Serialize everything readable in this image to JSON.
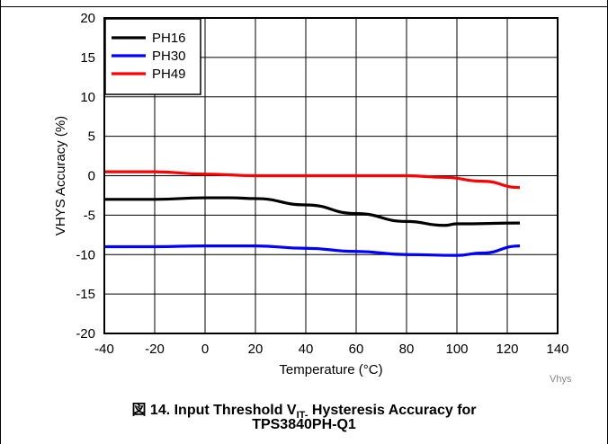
{
  "chart_data": {
    "type": "line",
    "title": "",
    "xlabel": "Temperature (°C)",
    "ylabel": "VHYS Accuracy (%)",
    "xlim": [
      -40,
      140
    ],
    "ylim": [
      -20,
      20
    ],
    "xticks": [
      -40,
      -20,
      0,
      20,
      40,
      60,
      80,
      100,
      120,
      140
    ],
    "yticks": [
      -20,
      -15,
      -10,
      -5,
      0,
      5,
      10,
      15,
      20
    ],
    "grid": true,
    "legend_position": "top-left",
    "series": [
      {
        "name": "PH16",
        "color": "#000000",
        "x": [
          -40,
          -20,
          0,
          10,
          20,
          40,
          60,
          80,
          95,
          100,
          125
        ],
        "y": [
          -3.0,
          -3.0,
          -2.8,
          -2.8,
          -2.9,
          -3.7,
          -4.8,
          -5.8,
          -6.3,
          -6.1,
          -6.0
        ]
      },
      {
        "name": "PH30",
        "color": "#0000ff",
        "x": [
          -40,
          -20,
          0,
          20,
          40,
          60,
          80,
          100,
          110,
          125
        ],
        "y": [
          -9.0,
          -9.0,
          -8.9,
          -8.9,
          -9.2,
          -9.6,
          -10.0,
          -10.1,
          -9.8,
          -8.9
        ]
      },
      {
        "name": "PH49",
        "color": "#ff0000",
        "x": [
          -40,
          -20,
          0,
          20,
          40,
          60,
          80,
          95,
          110,
          125
        ],
        "y": [
          0.5,
          0.5,
          0.2,
          0.0,
          0.0,
          0.0,
          0.0,
          -0.2,
          -0.7,
          -1.5
        ]
      }
    ]
  },
  "watermark": "Vhys",
  "caption": {
    "prefix": "図 14. Input Threshold V",
    "subscript": "IT-",
    "suffix": " Hysteresis Accuracy for",
    "line2": "TPS3840PH-Q1"
  }
}
